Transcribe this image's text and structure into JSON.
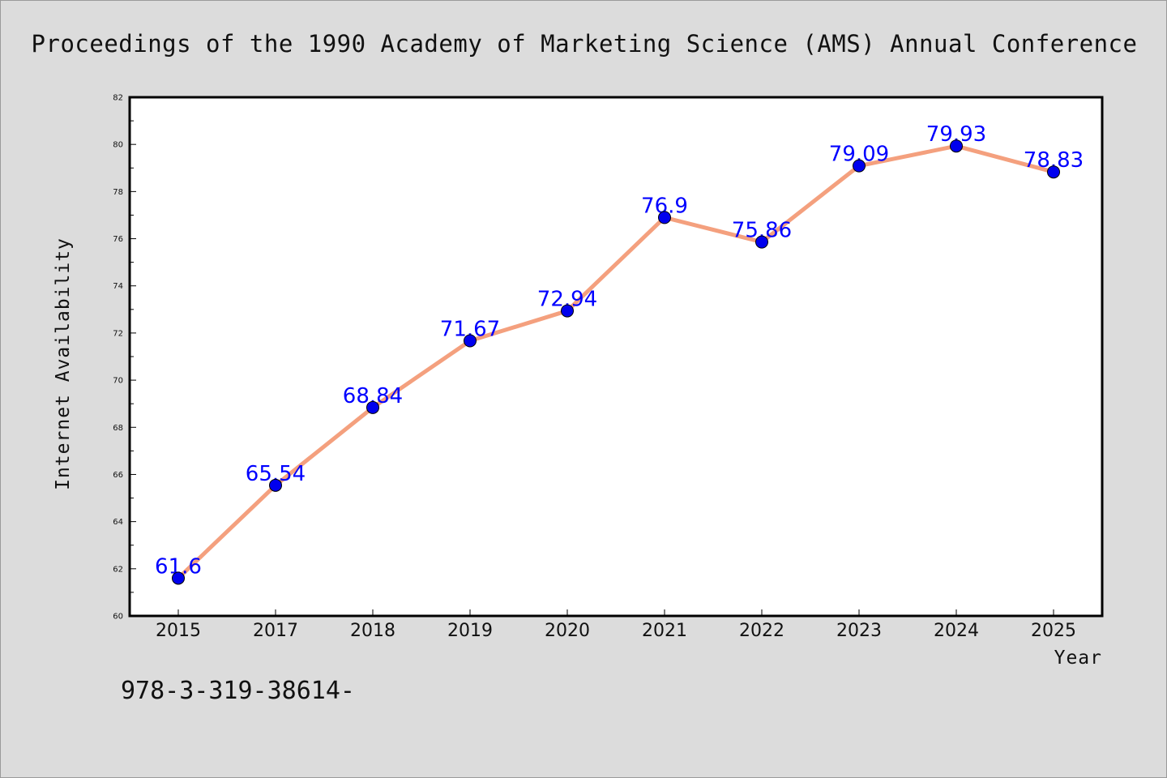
{
  "page": {
    "title": "Proceedings of the 1990 Academy of Marketing Science (AMS) Annual Conference",
    "footer": "978-3-319-38614-"
  },
  "chart_data": {
    "type": "line",
    "title": "Proceedings of the 1990 Academy of Marketing Science (AMS) Annual Conference",
    "xlabel": "Year",
    "ylabel": "Internet Availability",
    "categories": [
      "2015",
      "2017",
      "2018",
      "2019",
      "2020",
      "2021",
      "2022",
      "2023",
      "2024",
      "2025"
    ],
    "series": [
      {
        "values": [
          61.6,
          65.54,
          68.84,
          71.67,
          72.94,
          76.9,
          75.86,
          79.09,
          79.93,
          78.83
        ],
        "labels": [
          "61.6",
          "65.54",
          "68.84",
          "71.67",
          "72.94",
          "76.9",
          "75.86",
          "79.09",
          "79.93",
          "78.83"
        ]
      }
    ],
    "ylim": [
      60,
      82
    ],
    "yticks": [
      "60",
      "62",
      "64",
      "66",
      "68",
      "70",
      "72",
      "74",
      "76",
      "78",
      "80",
      "82"
    ],
    "grid": false,
    "colors": {
      "line": "#f4a07e",
      "marker": "#0000ee",
      "label": "#0000ff",
      "plot_bg": "#ffffff",
      "figure_bg": "#dcdcdc"
    }
  }
}
